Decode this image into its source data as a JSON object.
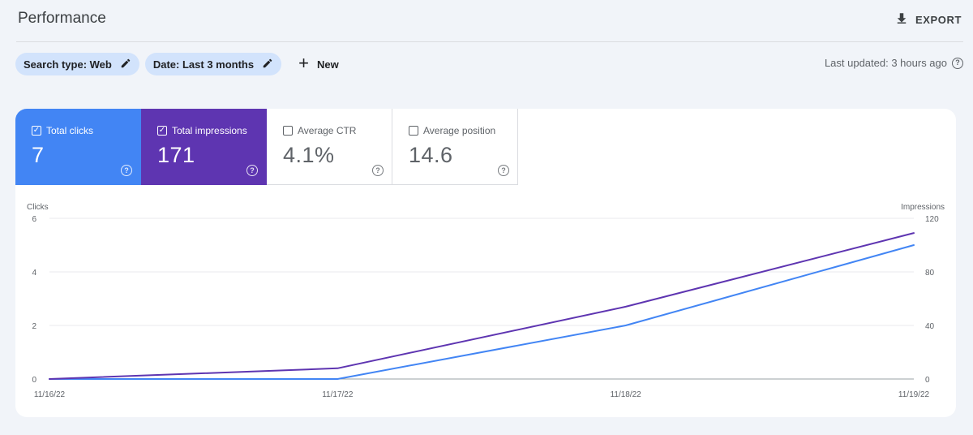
{
  "header": {
    "title": "Performance",
    "export_label": "EXPORT"
  },
  "filters": {
    "search_type": "Search type: Web",
    "date": "Date: Last 3 months",
    "new_label": "New",
    "last_updated": "Last updated: 3 hours ago"
  },
  "metrics": [
    {
      "label": "Total clicks",
      "value": "7",
      "checked": true,
      "color": "#4285f4"
    },
    {
      "label": "Total impressions",
      "value": "171",
      "checked": true,
      "color": "#5e35b1"
    },
    {
      "label": "Average CTR",
      "value": "4.1%",
      "checked": false
    },
    {
      "label": "Average position",
      "value": "14.6",
      "checked": false
    }
  ],
  "chart_data": {
    "type": "line",
    "x": [
      "11/16/22",
      "11/17/22",
      "11/18/22",
      "11/19/22"
    ],
    "series": [
      {
        "name": "Clicks",
        "axis": "left",
        "color": "#4285f4",
        "values": [
          0,
          0,
          2,
          5
        ]
      },
      {
        "name": "Impressions",
        "axis": "right",
        "color": "#5e35b1",
        "values": [
          0,
          8,
          54,
          109
        ]
      }
    ],
    "ylabel_left": "Clicks",
    "ylabel_right": "Impressions",
    "yticks_left": [
      "0",
      "2",
      "4",
      "6"
    ],
    "yticks_right": [
      "0",
      "40",
      "80",
      "120"
    ],
    "ylim_left": [
      0,
      6
    ],
    "ylim_right": [
      0,
      120
    ],
    "grid": true
  }
}
